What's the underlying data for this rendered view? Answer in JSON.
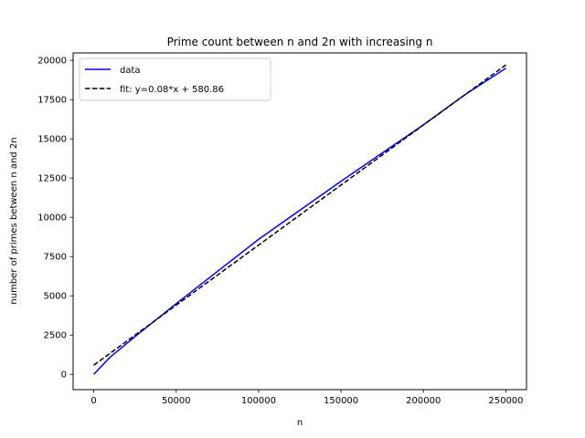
{
  "chart_data": {
    "type": "line",
    "title": "Prime count between n and 2n with increasing n",
    "xlabel": "n",
    "ylabel": "number of primes between n and 2n",
    "xlim": [
      -12500,
      262500
    ],
    "ylim": [
      -975,
      20475
    ],
    "xticks": [
      0,
      50000,
      100000,
      150000,
      200000,
      250000
    ],
    "yticks": [
      0,
      2500,
      5000,
      7500,
      10000,
      12500,
      15000,
      17500,
      20000
    ],
    "grid": false,
    "legend_position": "top-left",
    "series": [
      {
        "name": "data",
        "style": "solid",
        "color": "#0000ff",
        "x": [
          0,
          5000,
          10000,
          25000,
          50000,
          100000,
          150000,
          200000,
          225000,
          250000
        ],
        "y": [
          0,
          550,
          1100,
          2400,
          4500,
          8600,
          12300,
          15900,
          17800,
          19500
        ]
      },
      {
        "name": "fit: y=0.08*x + 580.86",
        "style": "dashed",
        "color": "#000000",
        "x": [
          0,
          250000
        ],
        "y": [
          580.86,
          19710
        ]
      }
    ]
  }
}
